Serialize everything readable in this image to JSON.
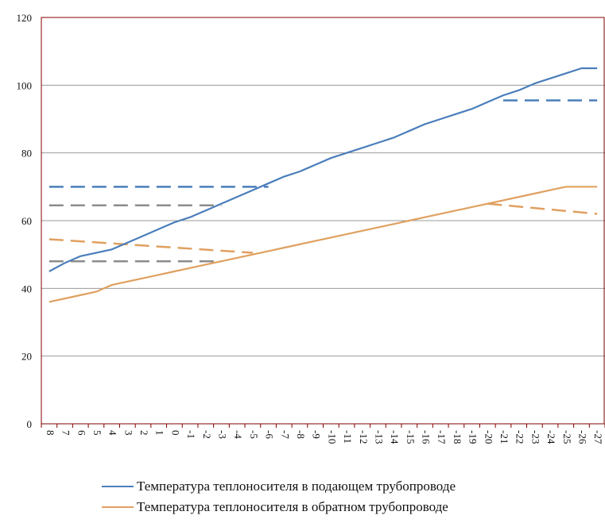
{
  "chart_data": {
    "type": "line",
    "categories": [
      "8",
      "7",
      "6",
      "5",
      "4",
      "3",
      "2",
      "1",
      "0",
      "-1",
      "-2",
      "-3",
      "-4",
      "-5",
      "-6",
      "-7",
      "-8",
      "-9",
      "-10",
      "-11",
      "-12",
      "-13",
      "-14",
      "-15",
      "-16",
      "-17",
      "-18",
      "-19",
      "-20",
      "-21",
      "-22",
      "-23",
      "-24",
      "-25",
      "-26",
      "-27"
    ],
    "ylim": [
      0,
      120
    ],
    "yticks": [
      "0",
      "20",
      "40",
      "60",
      "80",
      "100",
      "120"
    ],
    "grid": true,
    "legend_position": "bottom",
    "colors": {
      "supply": "#4a7ebb",
      "return": "#e0a060",
      "gray": "#8c8c8c",
      "axis": "#800000",
      "grid": "#999999"
    },
    "series": [
      {
        "name": "Температура теплоносителя в подающем трубопроводе",
        "color": "#4a7ebb",
        "values": [
          45,
          47.5,
          49.5,
          50.5,
          51.5,
          53.5,
          55.5,
          57.5,
          59.5,
          61,
          63,
          65,
          67,
          69,
          71,
          73,
          74.5,
          76.5,
          78.5,
          80,
          81.5,
          83,
          84.5,
          86.5,
          88.5,
          90,
          91.5,
          93,
          95,
          97,
          98.5,
          100.5,
          102,
          103.5,
          105,
          105
        ]
      },
      {
        "name": "Температура теплоносителя в обратном трубопроводе",
        "color": "#e0a060",
        "values": [
          36,
          37,
          38,
          39,
          41,
          42,
          43,
          44,
          45,
          46,
          47,
          48,
          49,
          50,
          51,
          52,
          53,
          54,
          55,
          56,
          57,
          58,
          59,
          60,
          61,
          62,
          63,
          64,
          65,
          66,
          67,
          68,
          69,
          70,
          70,
          70
        ]
      }
    ],
    "reference_lines": [
      {
        "color": "#4a7ebb",
        "x": [
          0,
          14
        ],
        "y": [
          70,
          70
        ]
      },
      {
        "color": "#4a7ebb",
        "x": [
          29,
          35
        ],
        "y": [
          95.5,
          95.5
        ]
      },
      {
        "color": "#8c8c8c",
        "x": [
          0,
          11
        ],
        "y": [
          64.5,
          64.5
        ]
      },
      {
        "color": "#8c8c8c",
        "x": [
          0,
          11
        ],
        "y": [
          48,
          48
        ]
      },
      {
        "color": "#e0a060",
        "x": [
          0,
          13
        ],
        "y": [
          54.5,
          50.5
        ]
      },
      {
        "color": "#e0a060",
        "x": [
          28,
          35
        ],
        "y": [
          65,
          62
        ]
      }
    ]
  }
}
